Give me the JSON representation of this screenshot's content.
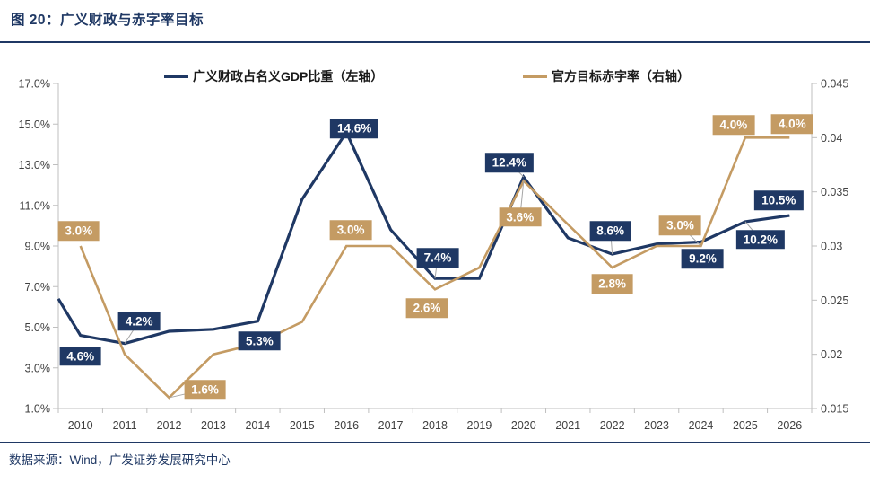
{
  "header": {
    "title": "图 20：广义财政与赤字率目标"
  },
  "legend": {
    "position": "top",
    "items": [
      {
        "label": "广义财政占名义GDP比重（左轴）",
        "color": "#1f3864"
      },
      {
        "label": "官方目标赤字率（右轴）",
        "color": "#c49b63"
      }
    ]
  },
  "footer": {
    "source": "数据来源：Wind，广发证券发展研究中心"
  },
  "chart_data": {
    "type": "line",
    "title": "广义财政与赤字率目标",
    "xlabel": "",
    "ylabel": "",
    "grid": false,
    "legend_position": "top",
    "categories": [
      "2010",
      "2011",
      "2012",
      "2013",
      "2014",
      "2015",
      "2016",
      "2017",
      "2018",
      "2019",
      "2020",
      "2021",
      "2022",
      "2023",
      "2024",
      "2025",
      "2026"
    ],
    "left_axis": {
      "min": 1,
      "max": 17,
      "unit": "percent",
      "ticks": [
        "17.0%",
        "15.0%",
        "13.0%",
        "11.0%",
        "9.0%",
        "7.0%",
        "5.0%",
        "3.0%",
        "1.0%"
      ],
      "tick_values": [
        17,
        15,
        13,
        11,
        9,
        7,
        5,
        3,
        1
      ]
    },
    "right_axis": {
      "min": 0.015,
      "max": 0.045,
      "unit": "decimal",
      "ticks": [
        "0.045",
        "0.04",
        "0.035",
        "0.03",
        "0.025",
        "0.02",
        "0.015"
      ],
      "tick_values": [
        0.045,
        0.04,
        0.035,
        0.03,
        0.025,
        0.02,
        0.015
      ]
    },
    "series": [
      {
        "id": "broad-fiscal",
        "name": "广义财政占名义GDP比重（左轴）",
        "axis": "left",
        "color": "#1f3864",
        "stroke_width": 3.2,
        "edge_start_value": 6.4,
        "values": [
          4.6,
          4.2,
          4.8,
          4.9,
          5.3,
          11.3,
          14.6,
          9.8,
          7.4,
          7.4,
          12.4,
          9.4,
          8.6,
          9.1,
          9.2,
          10.2,
          10.5
        ],
        "labels": [
          {
            "year": "2010",
            "text": "4.6%",
            "dx": 0,
            "dy": 23,
            "leader": false
          },
          {
            "year": "2011",
            "text": "4.2%",
            "dx": 16,
            "dy": -25,
            "leader": true
          },
          {
            "year": "2014",
            "text": "5.3%",
            "dx": 2,
            "dy": 22,
            "leader": false
          },
          {
            "year": "2016",
            "text": "14.6%",
            "dx": 9,
            "dy": -4,
            "leader": false
          },
          {
            "year": "2018",
            "text": "7.4%",
            "dx": 3,
            "dy": -23,
            "leader": true
          },
          {
            "year": "2020",
            "text": "12.4%",
            "dx": -16,
            "dy": -16,
            "leader": true
          },
          {
            "year": "2022",
            "text": "8.6%",
            "dx": -2,
            "dy": -26,
            "leader": true
          },
          {
            "year": "2024",
            "text": "9.2%",
            "dx": 2,
            "dy": 19,
            "leader": false
          },
          {
            "year": "2025",
            "text": "10.2%",
            "dx": 17,
            "dy": 20,
            "leader": true
          },
          {
            "year": "2026",
            "text": "10.5%",
            "dx": -12,
            "dy": -17,
            "leader": false
          }
        ]
      },
      {
        "id": "deficit-target",
        "name": "官方目标赤字率（右轴）",
        "axis": "right",
        "color": "#c49b63",
        "stroke_width": 2.6,
        "values": [
          3.0,
          2.0,
          1.6,
          2.0,
          2.1,
          2.3,
          3.0,
          3.0,
          2.6,
          2.8,
          3.6,
          3.2,
          2.8,
          3.0,
          3.0,
          4.0,
          4.0
        ],
        "labels": [
          {
            "year": "2010",
            "text": "3.0%",
            "dx": -2,
            "dy": -17,
            "leader": false
          },
          {
            "year": "2012",
            "text": "1.6%",
            "dx": 40,
            "dy": -9,
            "leader": true
          },
          {
            "year": "2016",
            "text": "3.0%",
            "dx": 5,
            "dy": -18,
            "leader": false
          },
          {
            "year": "2018",
            "text": "2.6%",
            "dx": -9,
            "dy": 21,
            "leader": false
          },
          {
            "year": "2020",
            "text": "3.6%",
            "dx": -4,
            "dy": 40,
            "leader": true
          },
          {
            "year": "2022",
            "text": "2.8%",
            "dx": 0,
            "dy": 18,
            "leader": false
          },
          {
            "year": "2024",
            "text": "3.0%",
            "dx": -23,
            "dy": -23,
            "leader": true
          },
          {
            "year": "2025",
            "text": "4.0%",
            "dx": -13,
            "dy": -14,
            "leader": false
          },
          {
            "year": "2026",
            "text": "4.0%",
            "dx": 3,
            "dy": -15,
            "leader": false
          }
        ]
      }
    ]
  }
}
